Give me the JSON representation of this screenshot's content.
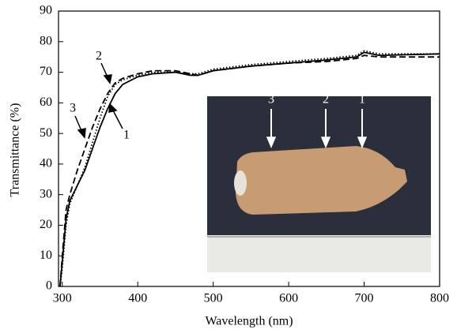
{
  "chart_data": {
    "type": "line",
    "x_label": "Wavelength (nm)",
    "y_label": "Transmittance (%)",
    "x": [
      297,
      300,
      305,
      310,
      320,
      330,
      340,
      350,
      360,
      370,
      380,
      400,
      420,
      450,
      470,
      480,
      500,
      550,
      600,
      650,
      690,
      700,
      720,
      800
    ],
    "series": [
      {
        "name": "1",
        "color": "#000000",
        "dash": "solid",
        "values": [
          0,
          8,
          22,
          28,
          33,
          38,
          45,
          52,
          58,
          63,
          66,
          68.5,
          69.5,
          70,
          69,
          69,
          70.5,
          72,
          73,
          74,
          75,
          76.5,
          75.5,
          76
        ]
      },
      {
        "name": "2",
        "color": "#000000",
        "dash": "dotted",
        "values": [
          0,
          6,
          20,
          27,
          33,
          39,
          47,
          55,
          62,
          66,
          67.5,
          69,
          70,
          70,
          69.5,
          69.5,
          71,
          72.5,
          73.5,
          74.5,
          75.5,
          77,
          76,
          76
        ]
      },
      {
        "name": "3",
        "color": "#000000",
        "dash": "dashed",
        "values": [
          0,
          10,
          25,
          30,
          38,
          45,
          52,
          58,
          63,
          66.5,
          68,
          69.5,
          70.5,
          70.5,
          69.5,
          69,
          70.5,
          72,
          73,
          73.5,
          74.5,
          75.5,
          75,
          75
        ]
      }
    ],
    "inset_labels": [
      "3",
      "2",
      "1"
    ],
    "xlim": [
      295,
      800
    ],
    "xticks": [
      300,
      400,
      500,
      600,
      700,
      800
    ],
    "ylim": [
      0,
      90
    ],
    "yticks": [
      0,
      10,
      20,
      30,
      40,
      50,
      60,
      70,
      80,
      90
    ],
    "grid": false
  }
}
